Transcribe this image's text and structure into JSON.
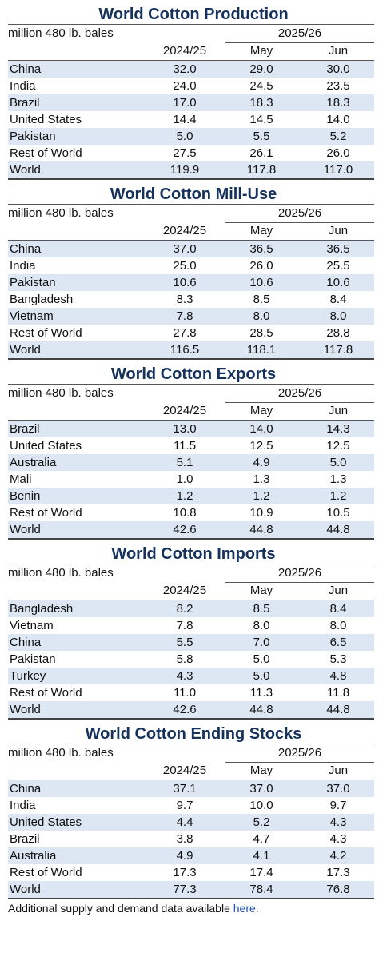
{
  "unit_label": "million 480 lb. bales",
  "marketing_year": "2025/26",
  "columns": [
    "2024/25",
    "May",
    "Jun"
  ],
  "tables": [
    {
      "title": "World Cotton Production",
      "rows": [
        {
          "name": "China",
          "v": [
            "32.0",
            "29.0",
            "30.0"
          ]
        },
        {
          "name": "India",
          "v": [
            "24.0",
            "24.5",
            "23.5"
          ]
        },
        {
          "name": "Brazil",
          "v": [
            "17.0",
            "18.3",
            "18.3"
          ]
        },
        {
          "name": "United States",
          "v": [
            "14.4",
            "14.5",
            "14.0"
          ]
        },
        {
          "name": "Pakistan",
          "v": [
            "5.0",
            "5.5",
            "5.2"
          ]
        },
        {
          "name": "Rest of World",
          "v": [
            "27.5",
            "26.1",
            "26.0"
          ]
        },
        {
          "name": "World",
          "v": [
            "119.9",
            "117.8",
            "117.0"
          ]
        }
      ]
    },
    {
      "title": "World Cotton Mill-Use",
      "rows": [
        {
          "name": "China",
          "v": [
            "37.0",
            "36.5",
            "36.5"
          ]
        },
        {
          "name": "India",
          "v": [
            "25.0",
            "26.0",
            "25.5"
          ]
        },
        {
          "name": "Pakistan",
          "v": [
            "10.6",
            "10.6",
            "10.6"
          ]
        },
        {
          "name": "Bangladesh",
          "v": [
            "8.3",
            "8.5",
            "8.4"
          ]
        },
        {
          "name": "Vietnam",
          "v": [
            "7.8",
            "8.0",
            "8.0"
          ]
        },
        {
          "name": "Rest of World",
          "v": [
            "27.8",
            "28.5",
            "28.8"
          ]
        },
        {
          "name": "World",
          "v": [
            "116.5",
            "118.1",
            "117.8"
          ]
        }
      ]
    },
    {
      "title": "World Cotton Exports",
      "rows": [
        {
          "name": "Brazil",
          "v": [
            "13.0",
            "14.0",
            "14.3"
          ]
        },
        {
          "name": "United States",
          "v": [
            "11.5",
            "12.5",
            "12.5"
          ]
        },
        {
          "name": "Australia",
          "v": [
            "5.1",
            "4.9",
            "5.0"
          ]
        },
        {
          "name": "Mali",
          "v": [
            "1.0",
            "1.3",
            "1.3"
          ]
        },
        {
          "name": "Benin",
          "v": [
            "1.2",
            "1.2",
            "1.2"
          ]
        },
        {
          "name": "Rest of World",
          "v": [
            "10.8",
            "10.9",
            "10.5"
          ]
        },
        {
          "name": "World",
          "v": [
            "42.6",
            "44.8",
            "44.8"
          ]
        }
      ]
    },
    {
      "title": "World Cotton Imports",
      "rows": [
        {
          "name": "Bangladesh",
          "v": [
            "8.2",
            "8.5",
            "8.4"
          ]
        },
        {
          "name": "Vietnam",
          "v": [
            "7.8",
            "8.0",
            "8.0"
          ]
        },
        {
          "name": "China",
          "v": [
            "5.5",
            "7.0",
            "6.5"
          ]
        },
        {
          "name": "Pakistan",
          "v": [
            "5.8",
            "5.0",
            "5.3"
          ]
        },
        {
          "name": "Turkey",
          "v": [
            "4.3",
            "5.0",
            "4.8"
          ]
        },
        {
          "name": "Rest of World",
          "v": [
            "11.0",
            "11.3",
            "11.8"
          ]
        },
        {
          "name": "World",
          "v": [
            "42.6",
            "44.8",
            "44.8"
          ]
        }
      ]
    },
    {
      "title": "World Cotton Ending Stocks",
      "rows": [
        {
          "name": "China",
          "v": [
            "37.1",
            "37.0",
            "37.0"
          ]
        },
        {
          "name": "India",
          "v": [
            "9.7",
            "10.0",
            "9.7"
          ]
        },
        {
          "name": "United States",
          "v": [
            "4.4",
            "5.2",
            "4.3"
          ]
        },
        {
          "name": "Brazil",
          "v": [
            "3.8",
            "4.7",
            "4.3"
          ]
        },
        {
          "name": "Australia",
          "v": [
            "4.9",
            "4.1",
            "4.2"
          ]
        },
        {
          "name": "Rest of World",
          "v": [
            "17.3",
            "17.4",
            "17.3"
          ]
        },
        {
          "name": "World",
          "v": [
            "77.3",
            "78.4",
            "76.8"
          ]
        }
      ]
    }
  ],
  "footer": {
    "text": "Additional supply and demand data available ",
    "link_text": "here",
    "suffix": "."
  }
}
